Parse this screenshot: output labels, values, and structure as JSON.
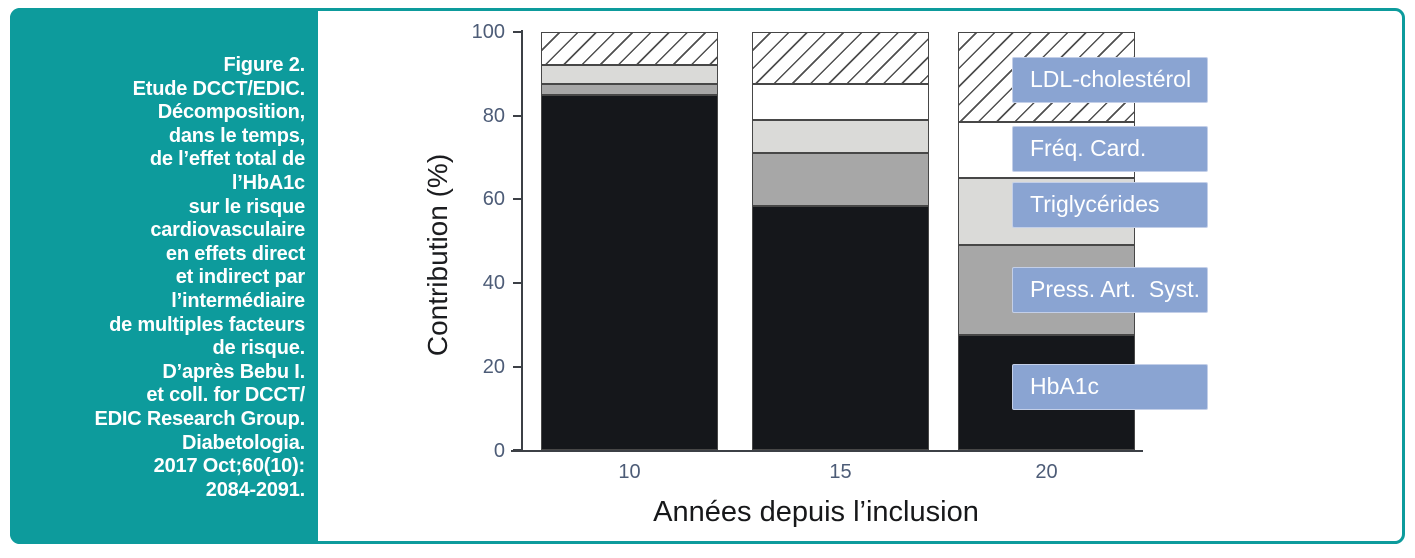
{
  "colors": {
    "teal": "#0d9b9c",
    "legend_blue": "#8aa4d2",
    "bar_black": "#15171b",
    "bar_gray": "#a7a7a7",
    "bar_lightgray": "#dadad8",
    "bar_white": "#ffffff"
  },
  "sidebar": {
    "lines": [
      "Figure 2.",
      "Etude DCCT/EDIC.",
      "Décomposition,",
      "dans le temps,",
      "de l’effet total de",
      "l’HbA1c",
      "sur le risque",
      "cardiovasculaire",
      "en effets direct",
      "et indirect par",
      "l’intermédiaire",
      "de multiples facteurs",
      "de risque.",
      "D’après Bebu I.",
      "et coll. for DCCT/",
      "EDIC Research Group.",
      "Diabetologia.",
      "2017 Oct;60(10):",
      "2084-2091."
    ]
  },
  "chart_data": {
    "type": "bar",
    "stacked": true,
    "title": "",
    "xlabel": "Années depuis l’inclusion",
    "ylabel": "Contribution (%)",
    "categories": [
      "10",
      "15",
      "20"
    ],
    "series": [
      {
        "name": "HbA1c",
        "fill": "#15171b",
        "values": [
          85,
          58.5,
          27.5
        ]
      },
      {
        "name": "Press. Art. Syst.",
        "fill": "#a7a7a7",
        "values": [
          2.5,
          12.5,
          21.5
        ]
      },
      {
        "name": "Triglycérides",
        "fill": "#dadad8",
        "values": [
          4.5,
          8,
          16
        ]
      },
      {
        "name": "Fréq. Card.",
        "fill": "#ffffff",
        "values": [
          0,
          8.5,
          13.5
        ]
      },
      {
        "name": "LDL-cholestérol",
        "fill": "hatch",
        "values": [
          8,
          12.5,
          21.5
        ]
      }
    ],
    "ylim": [
      0,
      100
    ],
    "yticks": [
      "0",
      "20",
      "40",
      "60",
      "80",
      "100"
    ],
    "grid": false,
    "legend_position": "right-overlay",
    "legend_labels": [
      {
        "text": "LDL-cholestérol"
      },
      {
        "text": "Fréq. Card."
      },
      {
        "text": "Triglycérides"
      },
      {
        "text": "Press. Art.  Syst."
      },
      {
        "text": "HbA1c"
      }
    ]
  }
}
